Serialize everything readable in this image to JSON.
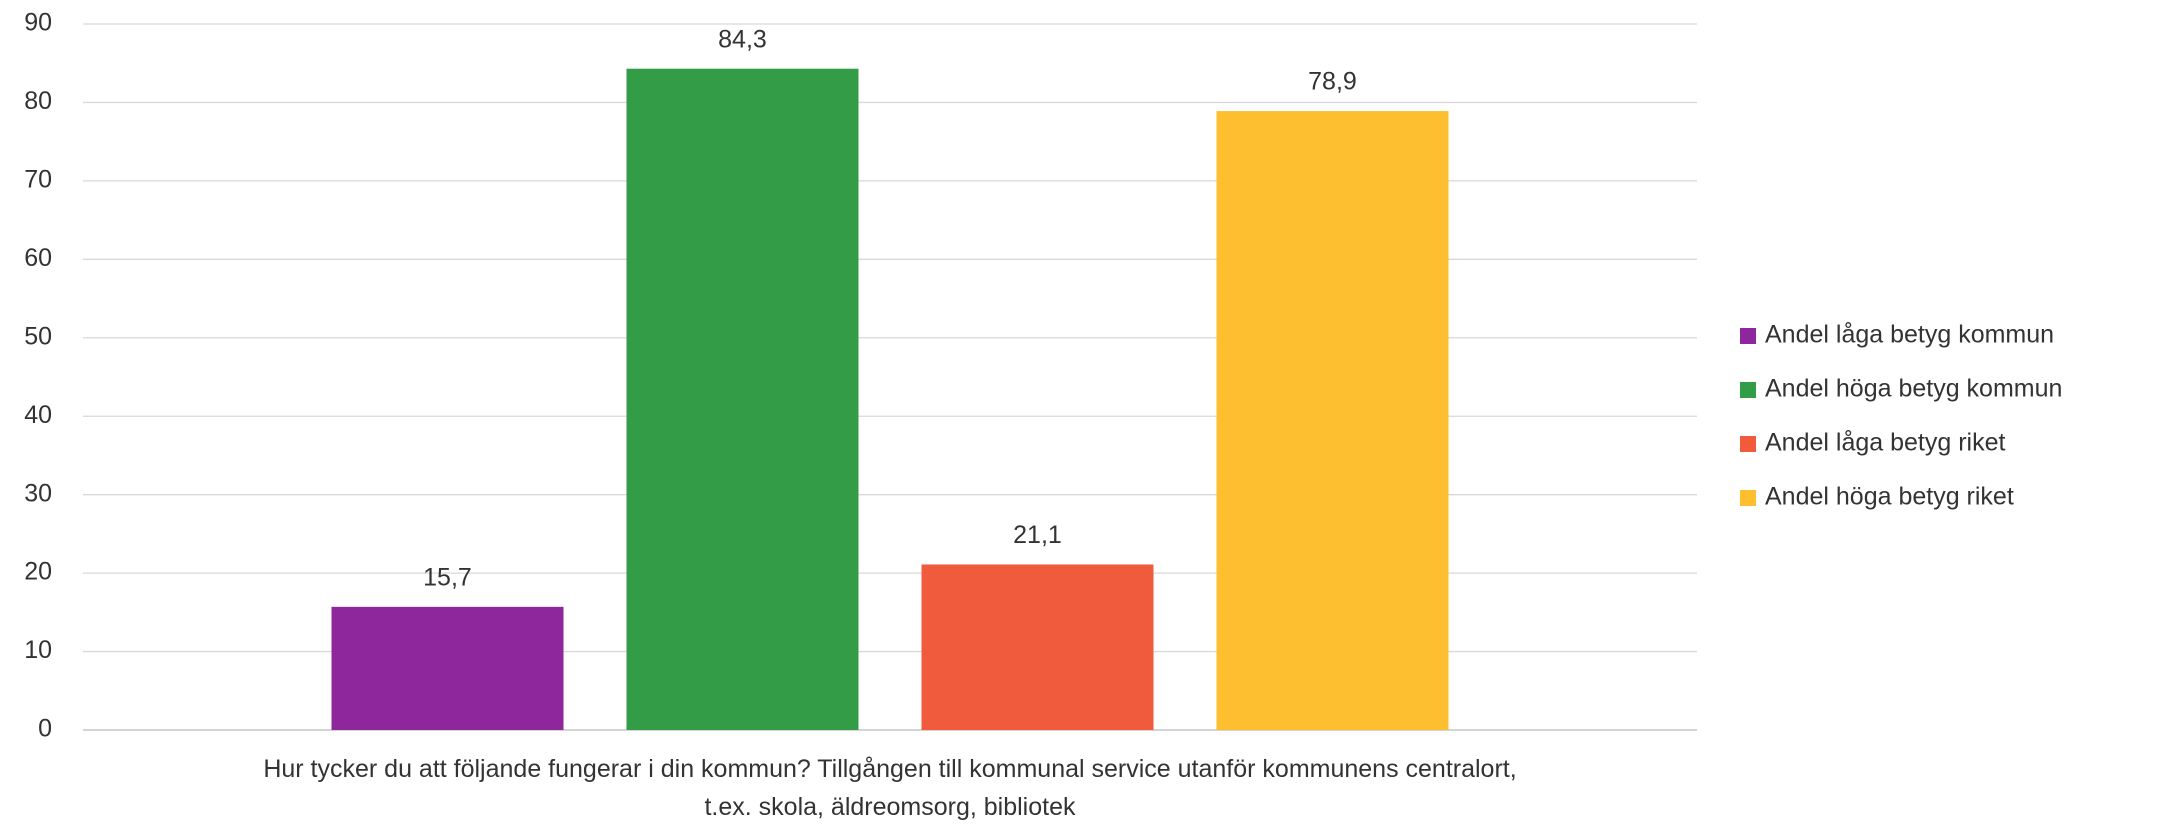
{
  "chart_data": {
    "type": "bar",
    "categories": [
      "Hur tycker du att följande fungerar i din kommun? Tillgången till kommunal service utanför kommunens centralort, t.ex. skola, äldreomsorg, bibliotek"
    ],
    "series": [
      {
        "name": "Andel låga betyg kommun",
        "color": "#8e279c",
        "values": [
          15.7
        ],
        "value_labels": [
          "15,7"
        ]
      },
      {
        "name": "Andel höga betyg kommun",
        "color": "#339c47",
        "values": [
          84.3
        ],
        "value_labels": [
          "84,3"
        ]
      },
      {
        "name": "Andel låga betyg riket",
        "color": "#ef5b3c",
        "values": [
          21.1
        ],
        "value_labels": [
          "21,1"
        ]
      },
      {
        "name": "Andel höga betyg riket",
        "color": "#fdbe2f",
        "values": [
          78.9
        ],
        "value_labels": [
          "78,9"
        ]
      }
    ],
    "ylim": [
      0,
      90
    ],
    "yticks": [
      0,
      10,
      20,
      30,
      40,
      50,
      60,
      70,
      80,
      90
    ],
    "grid": true,
    "legend": "right"
  }
}
